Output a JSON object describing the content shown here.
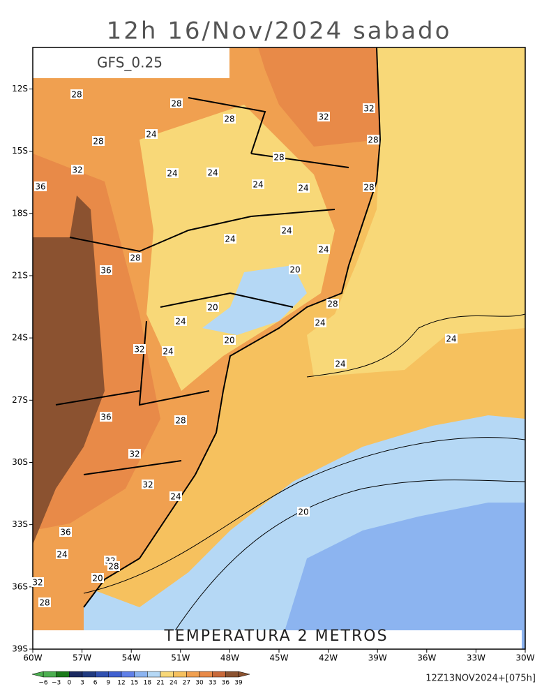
{
  "title": "12h 16/Nov/2024 sabado",
  "model": "GFS_0.25",
  "field": "TEMPERATURA 2 METROS",
  "run": "12Z13NOV2024+[075h]",
  "xlim": [
    -60,
    -30
  ],
  "ylim": [
    -39,
    -10
  ],
  "xticks": [
    {
      "value": -60,
      "label": "60W"
    },
    {
      "value": -57,
      "label": "57W"
    },
    {
      "value": -54,
      "label": "54W"
    },
    {
      "value": -51,
      "label": "51W"
    },
    {
      "value": -48,
      "label": "48W"
    },
    {
      "value": -45,
      "label": "45W"
    },
    {
      "value": -42,
      "label": "42W"
    },
    {
      "value": -39,
      "label": "39W"
    },
    {
      "value": -36,
      "label": "36W"
    },
    {
      "value": -33,
      "label": "33W"
    },
    {
      "value": -30,
      "label": "30W"
    }
  ],
  "yticks": [
    {
      "value": -12,
      "label": "12S"
    },
    {
      "value": -15,
      "label": "15S"
    },
    {
      "value": -18,
      "label": "18S"
    },
    {
      "value": -21,
      "label": "21S"
    },
    {
      "value": -24,
      "label": "24S"
    },
    {
      "value": -27,
      "label": "27S"
    },
    {
      "value": -30,
      "label": "30S"
    },
    {
      "value": -33,
      "label": "33S"
    },
    {
      "value": -36,
      "label": "36S"
    },
    {
      "value": -39,
      "label": "39S"
    }
  ],
  "colorbar": {
    "levels": [
      {
        "value": -6,
        "label": "−6"
      },
      {
        "value": -3,
        "label": "−3"
      },
      0,
      3,
      6,
      9,
      12,
      15,
      18,
      21,
      24,
      27,
      30,
      33,
      36,
      39
    ],
    "colors": [
      "#4caf50",
      "#1a7a1a",
      "#1a2a60",
      "#203a80",
      "#3050b0",
      "#4060d0",
      "#6080e8",
      "#8cb4f0",
      "#b5d8f5",
      "#f8d878",
      "#f6c15e",
      "#f0a050",
      "#e88a48",
      "#c8693a",
      "#8b5230"
    ]
  },
  "contour_labels": [
    28,
    28,
    28,
    32,
    32,
    24,
    28,
    28,
    28,
    32,
    24,
    24,
    24,
    24,
    28,
    36,
    24,
    24,
    24,
    28,
    36,
    20,
    28,
    20,
    24,
    24,
    20,
    24,
    32,
    24,
    24,
    36,
    28,
    32,
    32,
    24,
    20,
    36,
    24,
    32,
    28,
    20,
    32,
    28
  ]
}
